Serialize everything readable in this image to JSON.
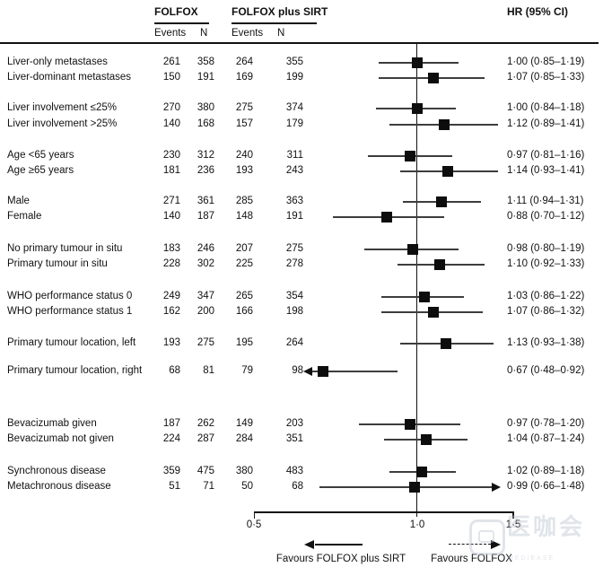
{
  "header": {
    "group1": "FOLFOX",
    "group2": "FOLFOX plus SIRT",
    "events_label": "Events",
    "n_label": "N",
    "hr_label": "HR (95% CI)"
  },
  "axis": {
    "scale": "log",
    "min": 0.5,
    "max": 1.5,
    "ref_line": 1.0,
    "tick_values": [
      0.5,
      1.0,
      1.5
    ],
    "tick_labels": [
      "0·5",
      "1·0",
      "1·5"
    ]
  },
  "footer": {
    "favours_left": "Favours FOLFOX plus SIRT",
    "favours_right": "Favours FOLFOX"
  },
  "watermark": {
    "text": "医咖会",
    "subtext": "MEDIEASE"
  },
  "chart_data": {
    "type": "forest",
    "effect_measure": "HR (95% CI)",
    "series": [
      "FOLFOX",
      "FOLFOX plus SIRT"
    ],
    "x_ticks": [
      0.5,
      1.0,
      1.5
    ],
    "rows": [
      {
        "label": "Liver-only metastases",
        "folfox_events": 261,
        "folfox_n": 358,
        "sirt_events": 264,
        "sirt_n": 355,
        "hr": 1.0,
        "lo": 0.85,
        "hi": 1.19,
        "hr_text": "1·00 (0·85–1·19)"
      },
      {
        "label": "Liver-dominant metastases",
        "folfox_events": 150,
        "folfox_n": 191,
        "sirt_events": 169,
        "sirt_n": 199,
        "hr": 1.07,
        "lo": 0.85,
        "hi": 1.33,
        "hr_text": "1·07 (0·85–1·33)"
      },
      {
        "label": "Liver involvement ≤25%",
        "gap_before": true,
        "folfox_events": 270,
        "folfox_n": 380,
        "sirt_events": 275,
        "sirt_n": 374,
        "hr": 1.0,
        "lo": 0.84,
        "hi": 1.18,
        "hr_text": "1·00 (0·84–1·18)"
      },
      {
        "label": "Liver involvement >25%",
        "folfox_events": 140,
        "folfox_n": 168,
        "sirt_events": 157,
        "sirt_n": 179,
        "hr": 1.12,
        "lo": 0.89,
        "hi": 1.41,
        "hr_text": "1·12 (0·89–1·41)"
      },
      {
        "label": "Age <65 years",
        "gap_before": true,
        "folfox_events": 230,
        "folfox_n": 312,
        "sirt_events": 240,
        "sirt_n": 311,
        "hr": 0.97,
        "lo": 0.81,
        "hi": 1.16,
        "hr_text": "0·97 (0·81–1·16)"
      },
      {
        "label": "Age ≥65 years",
        "folfox_events": 181,
        "folfox_n": 236,
        "sirt_events": 193,
        "sirt_n": 243,
        "hr": 1.14,
        "lo": 0.93,
        "hi": 1.41,
        "hr_text": "1·14 (0·93–1·41)"
      },
      {
        "label": "Male",
        "gap_before": true,
        "folfox_events": 271,
        "folfox_n": 361,
        "sirt_events": 285,
        "sirt_n": 363,
        "hr": 1.11,
        "lo": 0.94,
        "hi": 1.31,
        "hr_text": "1·11 (0·94–1·31)"
      },
      {
        "label": "Female",
        "folfox_events": 140,
        "folfox_n": 187,
        "sirt_events": 148,
        "sirt_n": 191,
        "hr": 0.88,
        "lo": 0.7,
        "hi": 1.12,
        "hr_text": "0·88 (0·70–1·12)"
      },
      {
        "label": "No primary tumour in situ",
        "gap_before": true,
        "folfox_events": 183,
        "folfox_n": 246,
        "sirt_events": 207,
        "sirt_n": 275,
        "hr": 0.98,
        "lo": 0.8,
        "hi": 1.19,
        "hr_text": "0·98 (0·80–1·19)"
      },
      {
        "label": "Primary tumour in situ",
        "folfox_events": 228,
        "folfox_n": 302,
        "sirt_events": 225,
        "sirt_n": 278,
        "hr": 1.1,
        "lo": 0.92,
        "hi": 1.33,
        "hr_text": "1·10 (0·92–1·33)"
      },
      {
        "label": "WHO performance status 0",
        "gap_before": true,
        "folfox_events": 249,
        "folfox_n": 347,
        "sirt_events": 265,
        "sirt_n": 354,
        "hr": 1.03,
        "lo": 0.86,
        "hi": 1.22,
        "hr_text": "1·03 (0·86–1·22)"
      },
      {
        "label": "WHO performance status 1",
        "folfox_events": 162,
        "folfox_n": 200,
        "sirt_events": 166,
        "sirt_n": 198,
        "hr": 1.07,
        "lo": 0.86,
        "hi": 1.32,
        "hr_text": "1·07 (0·86–1·32)"
      },
      {
        "label": "Primary tumour location, left",
        "gap_before": true,
        "two_line": true,
        "folfox_events": 193,
        "folfox_n": 275,
        "sirt_events": 195,
        "sirt_n": 264,
        "hr": 1.13,
        "lo": 0.93,
        "hi": 1.38,
        "hr_text": "1·13 (0·93–1·38)"
      },
      {
        "label": "Primary tumour location, right",
        "two_line": true,
        "folfox_events": 68,
        "folfox_n": 81,
        "sirt_events": 79,
        "sirt_n": 98,
        "hr": 0.67,
        "lo": 0.48,
        "hi": 0.92,
        "hr_text": "0·67 (0·48–0·92)",
        "arrow": "left",
        "clip_lo": 0.64
      },
      {
        "label": "Bevacizumab given",
        "gap_before": true,
        "folfox_events": 187,
        "folfox_n": 262,
        "sirt_events": 149,
        "sirt_n": 203,
        "hr": 0.97,
        "lo": 0.78,
        "hi": 1.2,
        "hr_text": "0·97 (0·78–1·20)"
      },
      {
        "label": "Bevacizumab not given",
        "folfox_events": 224,
        "folfox_n": 287,
        "sirt_events": 284,
        "sirt_n": 351,
        "hr": 1.04,
        "lo": 0.87,
        "hi": 1.24,
        "hr_text": "1·04 (0·87–1·24)"
      },
      {
        "label": "Synchronous disease",
        "gap_before": true,
        "folfox_events": 359,
        "folfox_n": 475,
        "sirt_events": 380,
        "sirt_n": 483,
        "hr": 1.02,
        "lo": 0.89,
        "hi": 1.18,
        "hr_text": "1·02 (0·89–1·18)"
      },
      {
        "label": "Metachronous disease",
        "folfox_events": 51,
        "folfox_n": 71,
        "sirt_events": 50,
        "sirt_n": 68,
        "hr": 0.99,
        "lo": 0.66,
        "hi": 1.48,
        "hr_text": "0·99 (0·66–1·48)",
        "arrow": "right",
        "clip_hi": 1.37
      }
    ]
  }
}
